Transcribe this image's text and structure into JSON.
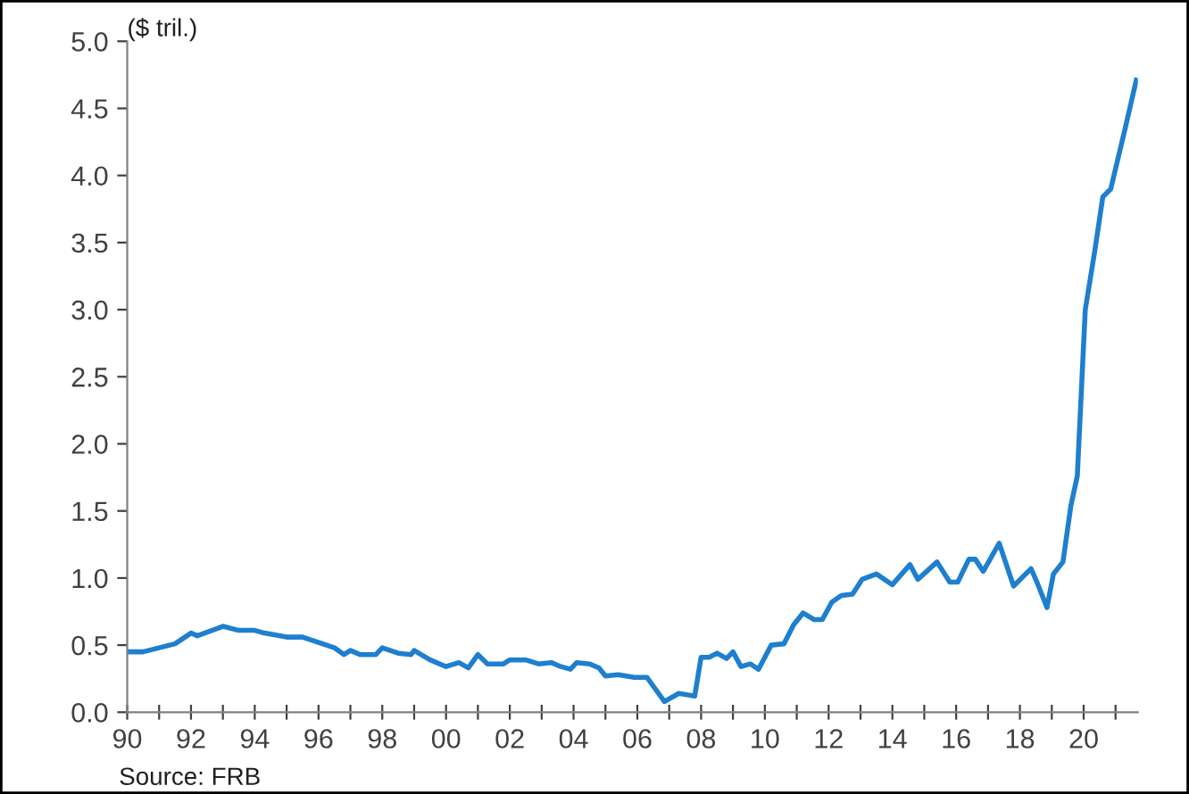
{
  "chart_data": {
    "type": "line",
    "ylabel": "($ tril.)",
    "annotations": [
      "Source: FRB"
    ],
    "x": [
      1990,
      1990.5,
      1991,
      1991.5,
      1992,
      1992.2,
      1993,
      1993.5,
      1994,
      1994.3,
      1995,
      1995.5,
      1996,
      1996.5,
      1996.8,
      1997,
      1997.3,
      1997.8,
      1998,
      1998.5,
      1998.9,
      1999,
      1999.5,
      2000,
      2000.4,
      2000.7,
      2001,
      2001.3,
      2001.8,
      2002,
      2002.5,
      2002.9,
      2003.3,
      2003.6,
      2003.9,
      2004.1,
      2004.5,
      2004.8,
      2005,
      2005.4,
      2005.9,
      2006.3,
      2006.85,
      2007.3,
      2007.8,
      2008,
      2008.25,
      2008.5,
      2008.8,
      2009,
      2009.25,
      2009.55,
      2009.8,
      2010.2,
      2010.6,
      2010.9,
      2011.2,
      2011.55,
      2011.8,
      2012.1,
      2012.4,
      2012.75,
      2013.05,
      2013.5,
      2014,
      2014.55,
      2014.8,
      2015.4,
      2015.8,
      2016.05,
      2016.4,
      2016.6,
      2016.85,
      2017.35,
      2017.8,
      2018.35,
      2018.55,
      2018.85,
      2019.05,
      2019.35,
      2019.6,
      2019.8,
      2020.05,
      2020.35,
      2020.6,
      2020.85,
      2021.3,
      2021.65
    ],
    "series": [
      {
        "color": "#1f7fcf",
        "values": [
          0.45,
          0.45,
          0.48,
          0.51,
          0.59,
          0.57,
          0.64,
          0.61,
          0.61,
          0.59,
          0.56,
          0.56,
          0.52,
          0.48,
          0.43,
          0.46,
          0.43,
          0.43,
          0.48,
          0.44,
          0.43,
          0.46,
          0.39,
          0.34,
          0.37,
          0.33,
          0.43,
          0.36,
          0.36,
          0.39,
          0.39,
          0.36,
          0.37,
          0.34,
          0.32,
          0.37,
          0.36,
          0.33,
          0.27,
          0.28,
          0.26,
          0.26,
          0.08,
          0.14,
          0.12,
          0.41,
          0.41,
          0.44,
          0.4,
          0.45,
          0.34,
          0.36,
          0.32,
          0.5,
          0.51,
          0.65,
          0.74,
          0.69,
          0.69,
          0.82,
          0.87,
          0.88,
          0.99,
          1.03,
          0.95,
          1.1,
          0.99,
          1.12,
          0.97,
          0.97,
          1.14,
          1.14,
          1.05,
          1.26,
          0.94,
          1.07,
          0.96,
          0.78,
          1.03,
          1.12,
          1.54,
          1.76,
          3.0,
          3.44,
          3.84,
          3.9,
          4.35,
          4.71
        ]
      }
    ],
    "xlim": [
      1990,
      2021.7
    ],
    "xticks": [
      {
        "value": 1990,
        "label": "90"
      },
      {
        "value": 1991,
        "label": null
      },
      {
        "value": 1992,
        "label": "92"
      },
      {
        "value": 1993,
        "label": null
      },
      {
        "value": 1994,
        "label": "94"
      },
      {
        "value": 1995,
        "label": null
      },
      {
        "value": 1996,
        "label": "96"
      },
      {
        "value": 1997,
        "label": null
      },
      {
        "value": 1998,
        "label": "98"
      },
      {
        "value": 1999,
        "label": null
      },
      {
        "value": 2000,
        "label": "00"
      },
      {
        "value": 2001,
        "label": null
      },
      {
        "value": 2002,
        "label": "02"
      },
      {
        "value": 2003,
        "label": null
      },
      {
        "value": 2004,
        "label": "04"
      },
      {
        "value": 2005,
        "label": null
      },
      {
        "value": 2006,
        "label": "06"
      },
      {
        "value": 2007,
        "label": null
      },
      {
        "value": 2008,
        "label": "08"
      },
      {
        "value": 2009,
        "label": null
      },
      {
        "value": 2010,
        "label": "10"
      },
      {
        "value": 2011,
        "label": null
      },
      {
        "value": 2012,
        "label": "12"
      },
      {
        "value": 2013,
        "label": null
      },
      {
        "value": 2014,
        "label": "14"
      },
      {
        "value": 2015,
        "label": null
      },
      {
        "value": 2016,
        "label": "16"
      },
      {
        "value": 2017,
        "label": null
      },
      {
        "value": 2018,
        "label": "18"
      },
      {
        "value": 2019,
        "label": null
      },
      {
        "value": 2020,
        "label": "20"
      },
      {
        "value": 2021,
        "label": null
      }
    ],
    "ylim": [
      0,
      5
    ],
    "yticks": [
      {
        "value": 0,
        "label": "0.0"
      },
      {
        "value": 0.5,
        "label": "0.5"
      },
      {
        "value": 1,
        "label": "1.0"
      },
      {
        "value": 1.5,
        "label": "1.5"
      },
      {
        "value": 2,
        "label": "2.0"
      },
      {
        "value": 2.5,
        "label": "2.5"
      },
      {
        "value": 3,
        "label": "3.0"
      },
      {
        "value": 3.5,
        "label": "3.5"
      },
      {
        "value": 4,
        "label": "4.0"
      },
      {
        "value": 4.5,
        "label": "4.5"
      },
      {
        "value": 5,
        "label": "5.0"
      }
    ],
    "grid": false,
    "marker": "none",
    "line_style": "solid"
  }
}
